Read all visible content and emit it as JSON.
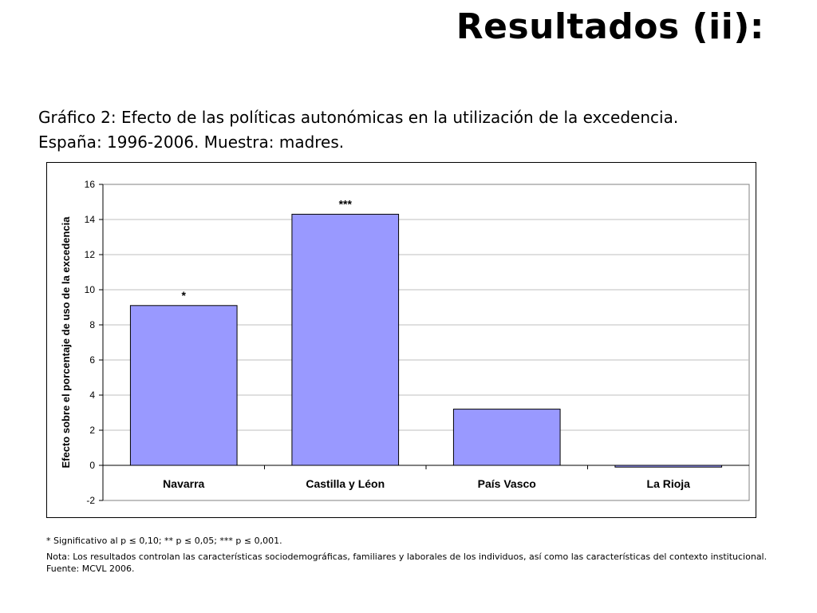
{
  "slide": {
    "title": "Resultados (ii):",
    "caption_line1": "Gráfico 2: Efecto de las políticas autonómicas en la utilización de la excedencia.",
    "caption_line2": "España: 1996-2006. Muestra: madres.",
    "footnote_significance": "* Significativo al p  ≤ 0,10; ** p  ≤ 0,05; *** p  ≤ 0,001.",
    "footnote_note": "Nota: Los resultados controlan las características sociodemográficas, familiares y laborales de los individuos, así como las características del contexto institucional.",
    "footnote_source": "Fuente: MCVL 2006."
  },
  "chart_data": {
    "type": "bar",
    "title": "",
    "xlabel": "",
    "ylabel": "Efecto sobre el porcentaje de uso de la excedencia",
    "categories": [
      "Navarra",
      "Castilla y Léon",
      "País Vasco",
      "La Rioja"
    ],
    "values": [
      9.1,
      14.3,
      3.2,
      -0.1
    ],
    "significance": [
      "*",
      "***",
      "",
      ""
    ],
    "ylim": [
      -2,
      16
    ],
    "yticks": [
      -2,
      0,
      2,
      4,
      6,
      8,
      10,
      12,
      14,
      16
    ],
    "grid": true,
    "legend": "none",
    "bar_color": "#9999ff",
    "plot_background": "#ffffff"
  }
}
